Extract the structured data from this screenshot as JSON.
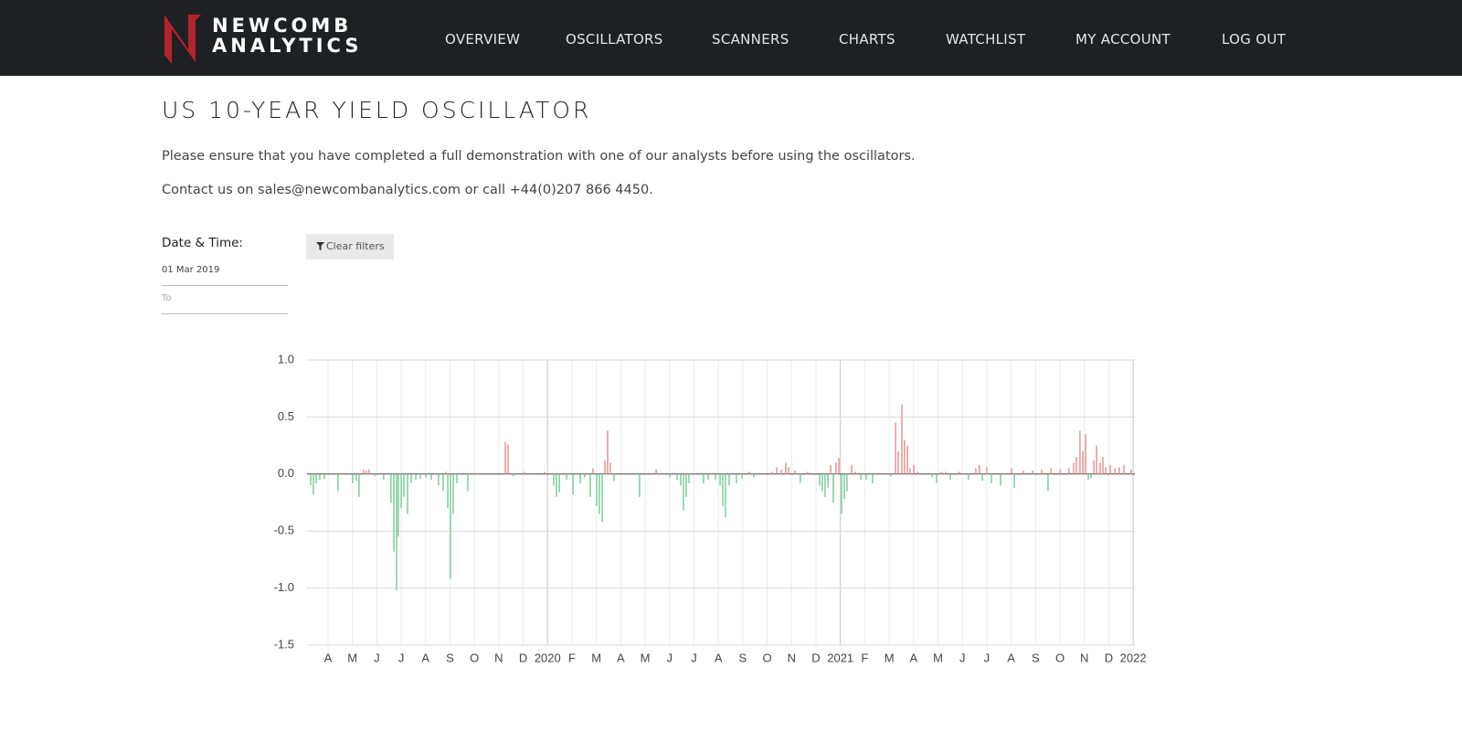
{
  "header": {
    "logo": [
      "NEWCOMB",
      "ANALYTICS"
    ],
    "nav": [
      "OVERVIEW",
      "OSCILLATORS",
      "SCANNERS",
      "CHARTS",
      "WATCHLIST",
      "MY ACCOUNT",
      "LOG OUT"
    ]
  },
  "page": {
    "title": "US 10-YEAR YIELD OSCILLATOR",
    "paragraphs": [
      "Please ensure that you have completed a full demonstration with one of our analysts before using the oscillators.",
      "Contact us on sales@newcombanalytics.com or call +44(0)207 866 4450."
    ]
  },
  "filters": {
    "label": "Date & Time:",
    "from": "01 Mar 2019",
    "to": "To",
    "clear": "Clear filters"
  },
  "chart_data": {
    "type": "bar",
    "positive_color": "#e79a9c",
    "negative_color": "#86cfa2",
    "grid": true,
    "xlim": [
      0.14,
      34.07
    ],
    "xticks": [
      {
        "value": 1,
        "label": "A"
      },
      {
        "value": 2,
        "label": "M"
      },
      {
        "value": 3,
        "label": "J"
      },
      {
        "value": 4,
        "label": "J"
      },
      {
        "value": 5,
        "label": "A"
      },
      {
        "value": 6,
        "label": "S"
      },
      {
        "value": 7,
        "label": "O"
      },
      {
        "value": 8,
        "label": "N"
      },
      {
        "value": 9,
        "label": "D"
      },
      {
        "value": 10,
        "label": "2020"
      },
      {
        "value": 11,
        "label": "F"
      },
      {
        "value": 12,
        "label": "M"
      },
      {
        "value": 13,
        "label": "A"
      },
      {
        "value": 14,
        "label": "M"
      },
      {
        "value": 15,
        "label": "J"
      },
      {
        "value": 16,
        "label": "J"
      },
      {
        "value": 17,
        "label": "A"
      },
      {
        "value": 18,
        "label": "S"
      },
      {
        "value": 19,
        "label": "O"
      },
      {
        "value": 20,
        "label": "N"
      },
      {
        "value": 21,
        "label": "D"
      },
      {
        "value": 22,
        "label": "2021"
      },
      {
        "value": 23,
        "label": "F"
      },
      {
        "value": 24,
        "label": "M"
      },
      {
        "value": 25,
        "label": "A"
      },
      {
        "value": 26,
        "label": "M"
      },
      {
        "value": 27,
        "label": "J"
      },
      {
        "value": 28,
        "label": "J"
      },
      {
        "value": 29,
        "label": "A"
      },
      {
        "value": 30,
        "label": "S"
      },
      {
        "value": 31,
        "label": "O"
      },
      {
        "value": 32,
        "label": "N"
      },
      {
        "value": 33,
        "label": "D"
      },
      {
        "value": 34,
        "label": "2022"
      }
    ],
    "ylim": [
      -1.5,
      1
    ],
    "yticks": [
      {
        "value": 1,
        "label": "1.0"
      },
      {
        "value": 0.5,
        "label": "0.5"
      },
      {
        "value": 0,
        "label": "0.0"
      },
      {
        "value": -0.5,
        "label": "-0.5"
      },
      {
        "value": -1,
        "label": "-1.0"
      },
      {
        "value": -1.5,
        "label": "-1.5"
      }
    ],
    "x": [
      0.29,
      0.4,
      0.51,
      0.66,
      0.85,
      1.41,
      2.01,
      2.16,
      2.27,
      2.46,
      2.57,
      2.69,
      2.91,
      3.28,
      3.58,
      3.7,
      3.81,
      3.88,
      4.0,
      4.11,
      4.26,
      4.41,
      4.6,
      4.78,
      5.01,
      5.23,
      5.53,
      5.72,
      5.83,
      5.91,
      6.02,
      6.13,
      6.28,
      6.73,
      7.03,
      8.27,
      8.38,
      8.6,
      9.05,
      9.28,
      9.88,
      10.25,
      10.36,
      10.48,
      10.78,
      11.04,
      11.34,
      11.52,
      11.75,
      11.86,
      12.01,
      12.12,
      12.24,
      12.35,
      12.46,
      12.57,
      12.72,
      13.77,
      14.45,
      15.01,
      15.31,
      15.46,
      15.57,
      15.68,
      15.79,
      16.39,
      16.58,
      16.88,
      17.07,
      17.18,
      17.29,
      17.44,
      17.74,
      17.97,
      18.27,
      18.45,
      18.64,
      19.2,
      19.39,
      19.58,
      19.76,
      19.88,
      20.14,
      20.36,
      20.66,
      21.15,
      21.26,
      21.37,
      21.49,
      21.6,
      21.71,
      21.82,
      21.94,
      22.05,
      22.16,
      22.27,
      22.46,
      22.61,
      22.84,
      23.06,
      23.32,
      23.88,
      24.07,
      24.26,
      24.37,
      24.52,
      24.63,
      24.75,
      24.86,
      25.01,
      25.16,
      25.76,
      25.94,
      26.13,
      26.32,
      26.51,
      26.88,
      27.25,
      27.55,
      27.7,
      27.82,
      28.0,
      28.19,
      28.57,
      29.02,
      29.13,
      29.5,
      29.88,
      30.25,
      30.51,
      30.63,
      31.01,
      31.37,
      31.56,
      31.67,
      31.82,
      31.94,
      32.05,
      32.16,
      32.27,
      32.39,
      32.5,
      32.65,
      32.76,
      32.87,
      33.06,
      33.25,
      33.43,
      33.62,
      33.92
    ],
    "values": [
      -0.1,
      -0.18,
      -0.08,
      -0.05,
      -0.04,
      -0.15,
      -0.08,
      -0.06,
      -0.2,
      0.04,
      0.03,
      0.04,
      -0.02,
      -0.05,
      -0.25,
      -0.68,
      -1.02,
      -0.55,
      -0.3,
      -0.2,
      -0.35,
      -0.08,
      -0.05,
      -0.04,
      -0.03,
      -0.05,
      -0.1,
      -0.15,
      0.02,
      -0.3,
      -0.92,
      -0.35,
      -0.08,
      -0.15,
      0.01,
      0.28,
      0.26,
      -0.02,
      0.02,
      0.01,
      0.02,
      -0.1,
      -0.2,
      -0.16,
      -0.05,
      -0.18,
      -0.08,
      -0.03,
      -0.2,
      0.05,
      -0.28,
      -0.35,
      -0.42,
      0.12,
      0.38,
      0.1,
      -0.06,
      -0.2,
      0.04,
      -0.03,
      -0.05,
      -0.1,
      -0.32,
      -0.2,
      -0.08,
      -0.08,
      -0.05,
      -0.05,
      -0.1,
      -0.28,
      -0.38,
      -0.1,
      -0.08,
      -0.04,
      0.02,
      -0.03,
      0.01,
      0.02,
      0.06,
      0.04,
      0.1,
      0.06,
      0.03,
      -0.08,
      0.02,
      -0.1,
      -0.15,
      -0.2,
      -0.12,
      0.08,
      -0.25,
      0.1,
      0.14,
      -0.35,
      -0.22,
      -0.15,
      0.08,
      0.02,
      -0.05,
      -0.05,
      -0.08,
      0.01,
      -0.02,
      0.45,
      0.2,
      0.61,
      0.3,
      0.25,
      0.05,
      0.08,
      0.02,
      -0.03,
      -0.08,
      0.02,
      0.02,
      -0.05,
      0.02,
      -0.05,
      0.05,
      0.08,
      -0.06,
      0.06,
      -0.08,
      -0.1,
      0.05,
      -0.12,
      0.03,
      0.03,
      0.04,
      -0.15,
      0.05,
      0.04,
      0.05,
      0.1,
      0.15,
      0.38,
      0.2,
      0.35,
      -0.05,
      -0.04,
      0.12,
      0.25,
      0.1,
      0.15,
      0.06,
      0.08,
      0.05,
      0.06,
      0.08,
      0.04
    ]
  }
}
